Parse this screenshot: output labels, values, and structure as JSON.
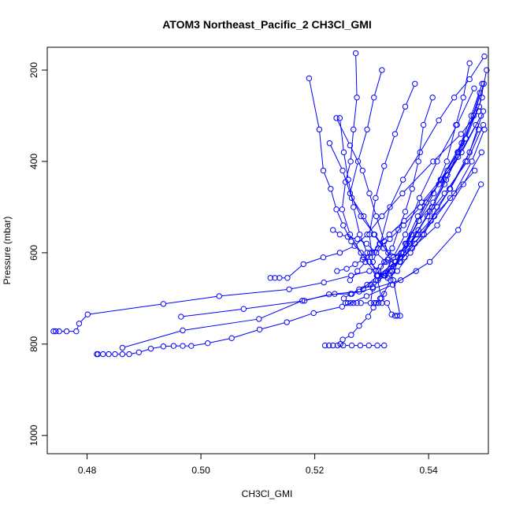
{
  "chart_data": {
    "type": "line",
    "title": "ATOM3 Northeast_Pacific_2 CH3Cl_GMI",
    "xlabel": "CH3Cl_GMI",
    "ylabel": "Pressure (mbar)",
    "xlim": [
      0.473,
      0.5505
    ],
    "ylim": [
      1040,
      150
    ],
    "y_reversed": true,
    "xticks": [
      "0.48",
      "0.50",
      "0.52",
      "0.54"
    ],
    "yticks": [
      "200",
      "400",
      "600",
      "800",
      "1000"
    ],
    "grid": false,
    "legend": "none",
    "markers": "open-circle",
    "color": "#0000ff",
    "series": [
      {
        "x": [
          0.5245,
          0.5249,
          0.5264,
          0.5278,
          0.5294,
          0.5303,
          0.5315,
          0.5322
        ],
        "y": [
          800,
          790,
          780,
          760,
          740,
          720,
          700,
          690
        ]
      },
      {
        "x": [
          0.5218,
          0.5225,
          0.5232,
          0.524,
          0.525,
          0.5265,
          0.528,
          0.5295,
          0.531,
          0.5322
        ],
        "y": [
          803,
          803,
          803,
          803,
          803,
          803,
          803,
          803,
          803,
          803
        ]
      },
      {
        "x": [
          0.4741,
          0.4745,
          0.4751,
          0.4764,
          0.4781,
          0.4786,
          0.4801,
          0.4934,
          0.5032,
          0.5155,
          0.5216,
          0.5264,
          0.5296,
          0.5316,
          0.5328
        ],
        "y": [
          772,
          772,
          772,
          772,
          772,
          755,
          735,
          712,
          695,
          680,
          665,
          650,
          640,
          630,
          615
        ]
      },
      {
        "x": [
          0.4817,
          0.4819,
          0.4828,
          0.4838,
          0.4849,
          0.4862,
          0.4874,
          0.4891,
          0.4912,
          0.4934,
          0.4952,
          0.4968,
          0.4983,
          0.5012,
          0.5054,
          0.5103,
          0.5151,
          0.5198,
          0.5248,
          0.5291,
          0.5337,
          0.5378
        ],
        "y": [
          822,
          822,
          822,
          822,
          822,
          822,
          822,
          818,
          810,
          805,
          804,
          804,
          804,
          798,
          787,
          768,
          752,
          732,
          718,
          695,
          670,
          640
        ]
      },
      {
        "x": [
          0.4862,
          0.4968,
          0.5102,
          0.5178,
          0.5235,
          0.5278,
          0.5311,
          0.5342,
          0.5389,
          0.5438,
          0.5481
        ],
        "y": [
          808,
          770,
          745,
          705,
          690,
          685,
          650,
          620,
          560,
          480,
          420
        ]
      },
      {
        "x": [
          0.4965,
          0.5075,
          0.5182,
          0.5225,
          0.5265,
          0.5302,
          0.5351,
          0.5402,
          0.5452,
          0.5492
        ],
        "y": [
          740,
          723,
          705,
          691,
          690,
          678,
          660,
          620,
          550,
          450
        ]
      },
      {
        "x": [
          0.5122,
          0.513,
          0.5138,
          0.5152,
          0.518,
          0.5215,
          0.5244,
          0.527,
          0.5292,
          0.5318,
          0.5354,
          0.5408,
          0.5457,
          0.5488
        ],
        "y": [
          655,
          655,
          655,
          655,
          625,
          610,
          600,
          585,
          560,
          520,
          470,
          400,
          340,
          290
        ]
      },
      {
        "x": [
          0.5254,
          0.5258,
          0.5263,
          0.5268,
          0.5274,
          0.5281,
          0.5298,
          0.5302,
          0.5322,
          0.5341,
          0.5361,
          0.5383,
          0.5408,
          0.5433,
          0.5458,
          0.5492
        ],
        "y": [
          710,
          710,
          710,
          710,
          710,
          710,
          710,
          675,
          650,
          620,
          580,
          530,
          490,
          430,
          380,
          300
        ]
      },
      {
        "x": [
          0.5304,
          0.5308,
          0.5312,
          0.5318,
          0.5327,
          0.5335,
          0.5341,
          0.5345,
          0.535,
          0.5338,
          0.5332,
          0.5371,
          0.5415,
          0.5461,
          0.5493
        ],
        "y": [
          710,
          710,
          710,
          710,
          710,
          735,
          738,
          738,
          738,
          660,
          640,
          590,
          540,
          450,
          380
        ]
      },
      {
        "x": [
          0.519,
          0.5208,
          0.5215,
          0.5228,
          0.5238,
          0.525,
          0.5264,
          0.5281,
          0.5296,
          0.5312,
          0.5328,
          0.5345,
          0.5368,
          0.5392,
          0.5415,
          0.5438,
          0.5465,
          0.5488
        ],
        "y": [
          218,
          330,
          420,
          460,
          505,
          540,
          575,
          600,
          620,
          640,
          655,
          640,
          600,
          560,
          500,
          460,
          400,
          330
        ]
      },
      {
        "x": [
          0.5272,
          0.5274,
          0.5268,
          0.5263,
          0.5254,
          0.5248,
          0.5262,
          0.5286,
          0.531,
          0.5336,
          0.5359,
          0.5383,
          0.5409,
          0.5432,
          0.5448,
          0.5461,
          0.5472
        ],
        "y": [
          163,
          260,
          330,
          400,
          445,
          505,
          560,
          610,
          650,
          640,
          580,
          530,
          470,
          400,
          320,
          260,
          185
        ]
      },
      {
        "x": [
          0.5318,
          0.5304,
          0.5292,
          0.5276,
          0.5262,
          0.5281,
          0.5305,
          0.5329,
          0.5358,
          0.5382,
          0.5406,
          0.5428,
          0.5451,
          0.5475,
          0.5494
        ],
        "y": [
          200,
          260,
          330,
          400,
          470,
          520,
          560,
          600,
          610,
          550,
          500,
          450,
          380,
          300,
          230
        ]
      },
      {
        "x": [
          0.5376,
          0.5359,
          0.5341,
          0.5322,
          0.5307,
          0.5296,
          0.5302,
          0.5315,
          0.5332,
          0.5355,
          0.5385,
          0.5418,
          0.5445,
          0.5472,
          0.5498
        ],
        "y": [
          230,
          280,
          340,
          410,
          480,
          560,
          620,
          580,
          500,
          440,
          380,
          310,
          260,
          220,
          170
        ]
      },
      {
        "x": [
          0.5407,
          0.5391,
          0.5382,
          0.5371,
          0.5359,
          0.5347,
          0.5336,
          0.5322,
          0.5309,
          0.5317,
          0.5333,
          0.5352,
          0.5381,
          0.5422,
          0.5458,
          0.5489,
          0.5502
        ],
        "y": [
          260,
          320,
          400,
          460,
          510,
          550,
          590,
          620,
          650,
          700,
          660,
          600,
          520,
          440,
          360,
          280,
          200
        ]
      },
      {
        "x": [
          0.5238,
          0.5262,
          0.5284,
          0.5296,
          0.5308,
          0.5322,
          0.5335,
          0.5351,
          0.537,
          0.5396,
          0.5433,
          0.5465,
          0.549
        ],
        "y": [
          305,
          365,
          420,
          470,
          520,
          575,
          625,
          620,
          560,
          490,
          420,
          350,
          250
        ]
      },
      {
        "x": [
          0.5226,
          0.5249,
          0.5265,
          0.5286,
          0.5304,
          0.5321,
          0.5338,
          0.5366,
          0.5398,
          0.5428,
          0.5468,
          0.5496
        ],
        "y": [
          360,
          420,
          480,
          520,
          560,
          590,
          610,
          580,
          520,
          470,
          400,
          320
        ]
      },
      {
        "x": [
          0.5244,
          0.5251,
          0.5259,
          0.5268,
          0.5279,
          0.5292,
          0.5307,
          0.5321,
          0.5338,
          0.5359,
          0.5384,
          0.5415,
          0.545,
          0.548
        ],
        "y": [
          305,
          380,
          440,
          500,
          560,
          600,
          640,
          650,
          610,
          560,
          480,
          400,
          320,
          240
        ]
      },
      {
        "x": [
          0.5232,
          0.5244,
          0.5258,
          0.5275,
          0.5291,
          0.5308,
          0.5325,
          0.5352,
          0.5381,
          0.541,
          0.5445,
          0.5476,
          0.5498
        ],
        "y": [
          550,
          560,
          565,
          570,
          580,
          600,
          620,
          600,
          560,
          520,
          470,
          400,
          330
        ]
      },
      {
        "x": [
          0.5239,
          0.5256,
          0.5271,
          0.5284,
          0.5297,
          0.5311,
          0.5332,
          0.5356,
          0.5385,
          0.5418,
          0.5452,
          0.5483
        ],
        "y": [
          640,
          635,
          625,
          615,
          600,
          590,
          570,
          540,
          500,
          450,
          390,
          320
        ]
      },
      {
        "x": [
          0.5262,
          0.5275,
          0.5289,
          0.5301,
          0.5314,
          0.5331,
          0.5357,
          0.5388,
          0.5421,
          0.5452,
          0.5479,
          0.5497
        ],
        "y": [
          660,
          640,
          620,
          600,
          580,
          560,
          530,
          490,
          440,
          380,
          300,
          230
        ]
      },
      {
        "x": [
          0.5251,
          0.5263,
          0.5278,
          0.5292,
          0.5308,
          0.5325,
          0.5349,
          0.5376,
          0.5404,
          0.5437,
          0.5472,
          0.5496
        ],
        "y": [
          700,
          690,
          680,
          670,
          660,
          645,
          620,
          580,
          530,
          460,
          380,
          290
        ]
      },
      {
        "x": [
          0.5285,
          0.5298,
          0.5311,
          0.5324,
          0.5338,
          0.5356,
          0.5378,
          0.5402,
          0.5431,
          0.5466,
          0.5494
        ],
        "y": [
          680,
          670,
          660,
          650,
          630,
          600,
          560,
          510,
          440,
          350,
          260
        ]
      }
    ]
  }
}
